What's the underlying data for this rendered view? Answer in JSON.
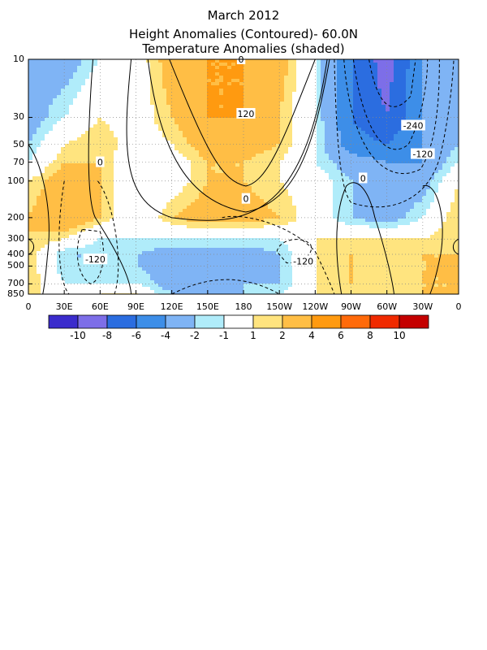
{
  "chart_data": {
    "type": "heatmap",
    "title": "March 2012",
    "subtitle_1": "Height Anomalies (Contoured)- 60.0N",
    "subtitle_2": "Temperature Anomalies (shaded)",
    "x_tick_labels": [
      "0",
      "30E",
      "60E",
      "90E",
      "120E",
      "150E",
      "180",
      "150W",
      "120W",
      "90W",
      "60W",
      "30W",
      "0"
    ],
    "y_tick_labels": [
      "10",
      "30",
      "50",
      "70",
      "100",
      "200",
      "300",
      "400",
      "500",
      "700",
      "850"
    ],
    "y_levels": [
      10,
      30,
      50,
      70,
      100,
      200,
      300,
      400,
      500,
      700,
      850
    ],
    "y_scale": "log",
    "grid": true,
    "colorbar": {
      "labels": [
        "-10",
        "-8",
        "-6",
        "-4",
        "-2",
        "-1",
        "1",
        "2",
        "4",
        "6",
        "8",
        "10"
      ],
      "colors": [
        "#3b2ccc",
        "#7d6ee8",
        "#2b6de0",
        "#3d8ee8",
        "#7fb4f5",
        "#b0ecfa",
        "#ffffff",
        "#ffe47f",
        "#ffbe45",
        "#ff9a10",
        "#ff6a0a",
        "#f02a00",
        "#c40000"
      ]
    },
    "contour_labels": [
      "0",
      "120",
      "-240",
      "-120",
      "0",
      "0",
      "0",
      "-120",
      "-120"
    ],
    "approx_fields": {
      "longitudes": [
        0,
        30,
        60,
        90,
        120,
        150,
        180,
        210,
        240,
        270,
        300,
        330,
        360
      ],
      "levels": [
        10,
        30,
        50,
        70,
        100,
        200,
        300,
        400,
        500,
        700,
        850
      ],
      "temperature_anomaly": [
        [
          -3,
          -3,
          -1,
          0,
          3,
          4,
          4,
          3,
          -1,
          -6,
          -9,
          -4,
          -3
        ],
        [
          -3,
          -1,
          1,
          0,
          2,
          4,
          4,
          2,
          -1,
          -6,
          -8,
          -4,
          -3
        ],
        [
          -2,
          1,
          2,
          0,
          1,
          3,
          3,
          2,
          -1,
          -5,
          -6,
          -4,
          -2
        ],
        [
          -1,
          2,
          2,
          -1,
          0,
          2,
          2,
          1,
          -1,
          -3,
          -4,
          -4,
          -1
        ],
        [
          1,
          3,
          2,
          -1,
          0,
          2,
          2,
          1,
          0,
          -2,
          -3,
          -3,
          1
        ],
        [
          2,
          4,
          2,
          -1,
          2,
          3,
          3,
          2,
          0,
          -2,
          -3,
          -1,
          2
        ],
        [
          2,
          1,
          -1,
          -1,
          -1,
          -1,
          -1,
          -1,
          1,
          1,
          1,
          1,
          2
        ],
        [
          2,
          -2,
          -2,
          -2,
          -3,
          -3,
          -3,
          -2,
          1,
          2,
          1,
          2,
          2
        ],
        [
          2,
          -2,
          -2,
          -2,
          -3,
          -3,
          -3,
          -2,
          1,
          2,
          1,
          2,
          2
        ],
        [
          2,
          -1,
          -1,
          -1,
          -3,
          -3,
          -2,
          -2,
          1,
          2,
          1,
          2,
          2
        ],
        [
          2,
          -1,
          1,
          1,
          -2,
          -3,
          -2,
          -1,
          1,
          1,
          1,
          2,
          2
        ]
      ]
    }
  }
}
